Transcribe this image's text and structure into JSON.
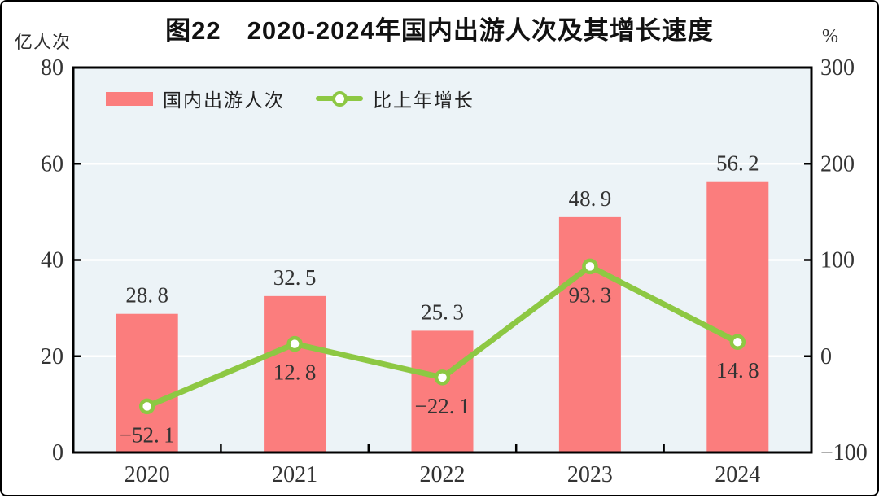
{
  "title": "图22　2020-2024年国内出游人次及其增长速度",
  "units": {
    "left": "亿人次",
    "right": "%"
  },
  "legend": {
    "bar_label": "国内出游人次",
    "line_label": "比上年增长"
  },
  "colors": {
    "bar": "#FB7D7D",
    "line": "#8DC843",
    "plot_bg": "#ECF3F7",
    "grid": "#FFFFFF",
    "axis": "#000000",
    "text": "#333333"
  },
  "chart_data": {
    "type": "bar",
    "subtype": "bar-line-combo",
    "title": "图22　2020-2024年国内出游人次及其增长速度",
    "categories": [
      "2020",
      "2021",
      "2022",
      "2023",
      "2024"
    ],
    "series": [
      {
        "name": "国内出游人次",
        "type": "bar",
        "axis": "left",
        "values": [
          28.8,
          32.5,
          25.3,
          48.9,
          56.2
        ]
      },
      {
        "name": "比上年增长",
        "type": "line",
        "axis": "right",
        "values": [
          -52.1,
          12.8,
          -22.1,
          93.3,
          14.8
        ]
      }
    ],
    "left_axis": {
      "label": "亿人次",
      "min": 0,
      "max": 80,
      "ticks": [
        0,
        20,
        40,
        60,
        80
      ]
    },
    "right_axis": {
      "label": "%",
      "min": -100,
      "max": 300,
      "ticks": [
        -100,
        0,
        100,
        200,
        300
      ]
    },
    "xlabel": "",
    "grid": "horizontal",
    "legend_position": "top-left-inside",
    "data_labels": true
  }
}
